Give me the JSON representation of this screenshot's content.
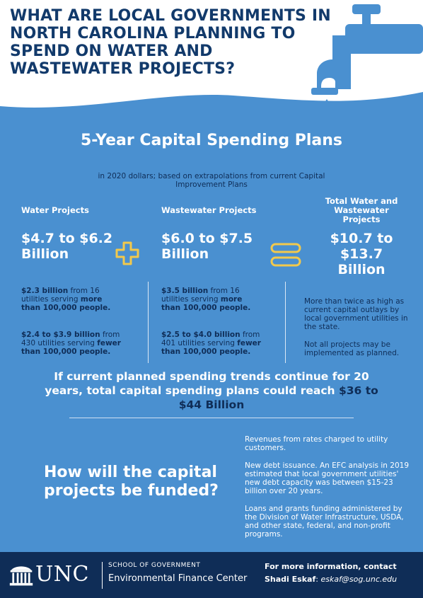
{
  "header": {
    "title": "WHAT ARE LOCAL GOVERNMENTS IN NORTH CAROLINA PLANNING TO SPEND ON WATER AND WASTEWATER PROJECTS?"
  },
  "plans": {
    "title": "5-Year Capital Spending Plans",
    "subtitle": "in 2020 dollars; based on extrapolations from current Capital Improvement Plans"
  },
  "water": {
    "heading": "Water Projects",
    "range": "$4.7 to $6.2 Billion",
    "large_amount": "$2.3 billion",
    "large_text": " from 16 utilities serving ",
    "large_emph": "more than 100,000 people.",
    "small_amount": "$2.4 to $3.9 billion",
    "small_text": " from 430 utilities serving ",
    "small_emph": "fewer than 100,000 people."
  },
  "wastewater": {
    "heading": "Wastewater Projects",
    "range": "$6.0 to $7.5 Billion",
    "large_amount": "$3.5 billion",
    "large_text": " from 16 utilities serving ",
    "large_emph": "more than 100,000 people.",
    "small_amount": "$2.5 to $4.0 billion",
    "small_text": " from 401 utilities serving ",
    "small_emph": "fewer than 100,000 people."
  },
  "total": {
    "heading": "Total Water and Wastewater Projects",
    "range": "$10.7 to $13.7 Billion",
    "note1": "More than twice as high as current capital outlays by local government utilities in the state.",
    "note2": "Not all projects may be implemented as planned."
  },
  "trend": {
    "text": "If current planned spending trends continue for 20 years, total capital spending plans could reach ",
    "amount": "$36 to $44 Billion"
  },
  "funding": {
    "title": "How will the capital projects be funded?",
    "items": [
      "Revenues from rates charged to utility customers.",
      "New debt issuance. An EFC analysis in 2019 estimated that local government utilities' new debt capacity was between $15-23 billion over 20 years.",
      "Loans and grants funding administered by the Division of Water Infrastructure, USDA, and other state, federal, and non-profit programs."
    ]
  },
  "footer": {
    "logo_text": "UNC",
    "school": "SCHOOL OF GOVERNMENT",
    "center": "Environmental Finance Center",
    "info_line": "For more information, contact",
    "contact_name": "Shadi Eskaf",
    "contact_sep": ": ",
    "contact_email": "eskaf@sog.unc.edu"
  },
  "colors": {
    "navy": "#0f2d57",
    "title_blue": "#123a6b",
    "sky": "#4a90d0",
    "accent_yellow": "#f2c94c"
  }
}
